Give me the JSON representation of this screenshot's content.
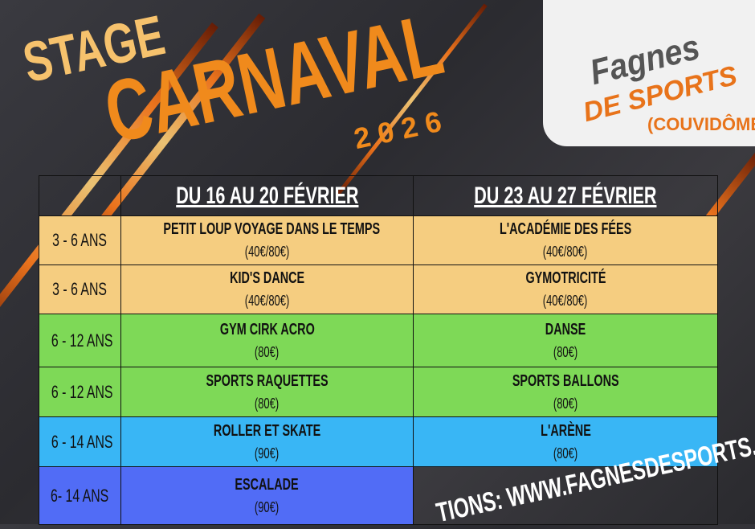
{
  "header": {
    "stage": "STAGE",
    "carnaval": "CARNAVAL",
    "year": "2026"
  },
  "logo": {
    "name": "Fagnes",
    "sub": "DE SPORTS",
    "place": "(COUVIDÔME)"
  },
  "table": {
    "columns": [
      "DU 16 AU 20 FÉVRIER",
      "DU 23 AU 27 FÉVRIER"
    ],
    "rows": [
      {
        "age": "3 - 6 ANS",
        "color": "#f5cd80",
        "w1": {
          "title": "PETIT LOUP VOYAGE DANS LE TEMPS",
          "price": "(40€/80€)"
        },
        "w2": {
          "title": "L'ACADÉMIE DES FÉES",
          "price": "(40€/80€)"
        }
      },
      {
        "age": "3 - 6 ANS",
        "color": "#f5cd80",
        "w1": {
          "title": "KID'S DANCE",
          "price": "(40€/80€)"
        },
        "w2": {
          "title": "GYMOTRICITÉ",
          "price": "(40€/80€)"
        }
      },
      {
        "age": "6 - 12 ANS",
        "color": "#7ed957",
        "w1": {
          "title": "GYM CIRK ACRO",
          "price": "(80€)"
        },
        "w2": {
          "title": "DANSE",
          "price": "(80€)"
        }
      },
      {
        "age": "6 - 12 ANS",
        "color": "#7ed957",
        "w1": {
          "title": "SPORTS RAQUETTES",
          "price": "(80€)"
        },
        "w2": {
          "title": "SPORTS BALLONS",
          "price": "(80€)"
        }
      },
      {
        "age": "6 - 14 ANS",
        "color": "#39b6f5",
        "w1": {
          "title": "ROLLER ET SKATE",
          "price": "(90€)"
        },
        "w2": {
          "title": "L'ARÈNE",
          "price": "(80€)"
        }
      },
      {
        "age": "6- 14 ANS",
        "color": "#516cf6",
        "w1": {
          "title": "ESCALADE",
          "price": "(90€)"
        }
      }
    ]
  },
  "footer": {
    "website": "TIONS: WWW.FAGNESDESPORTS.COM"
  }
}
